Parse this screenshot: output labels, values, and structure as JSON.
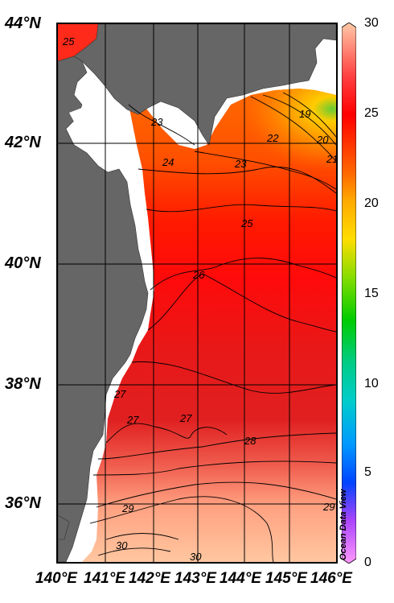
{
  "map": {
    "lat_labels": [
      "44°N",
      "42°N",
      "40°N",
      "38°N",
      "36°N"
    ],
    "lon_labels": [
      "140°E",
      "141°E",
      "142°E",
      "143°E",
      "144°E",
      "145°E",
      "146°E"
    ],
    "lat_range": [
      35,
      44
    ],
    "lon_range": [
      140,
      146
    ],
    "land_color": "#666666",
    "grid_color": "#000000"
  },
  "colorbar": {
    "ticks": [
      "30",
      "25",
      "20",
      "15",
      "10",
      "5",
      "0"
    ],
    "range": [
      0,
      30
    ],
    "colors": [
      "#ffc9a8",
      "#ff0000",
      "#ffaa00",
      "#00cc00",
      "#00cccc",
      "#0044ff",
      "#ff88ff"
    ]
  },
  "contour_labels": [
    "25",
    "23",
    "22",
    "19",
    "20",
    "21",
    "24",
    "23",
    "25",
    "26",
    "27",
    "27",
    "27",
    "28",
    "29",
    "29",
    "30",
    "30"
  ],
  "credit": "Ocean Data View"
}
